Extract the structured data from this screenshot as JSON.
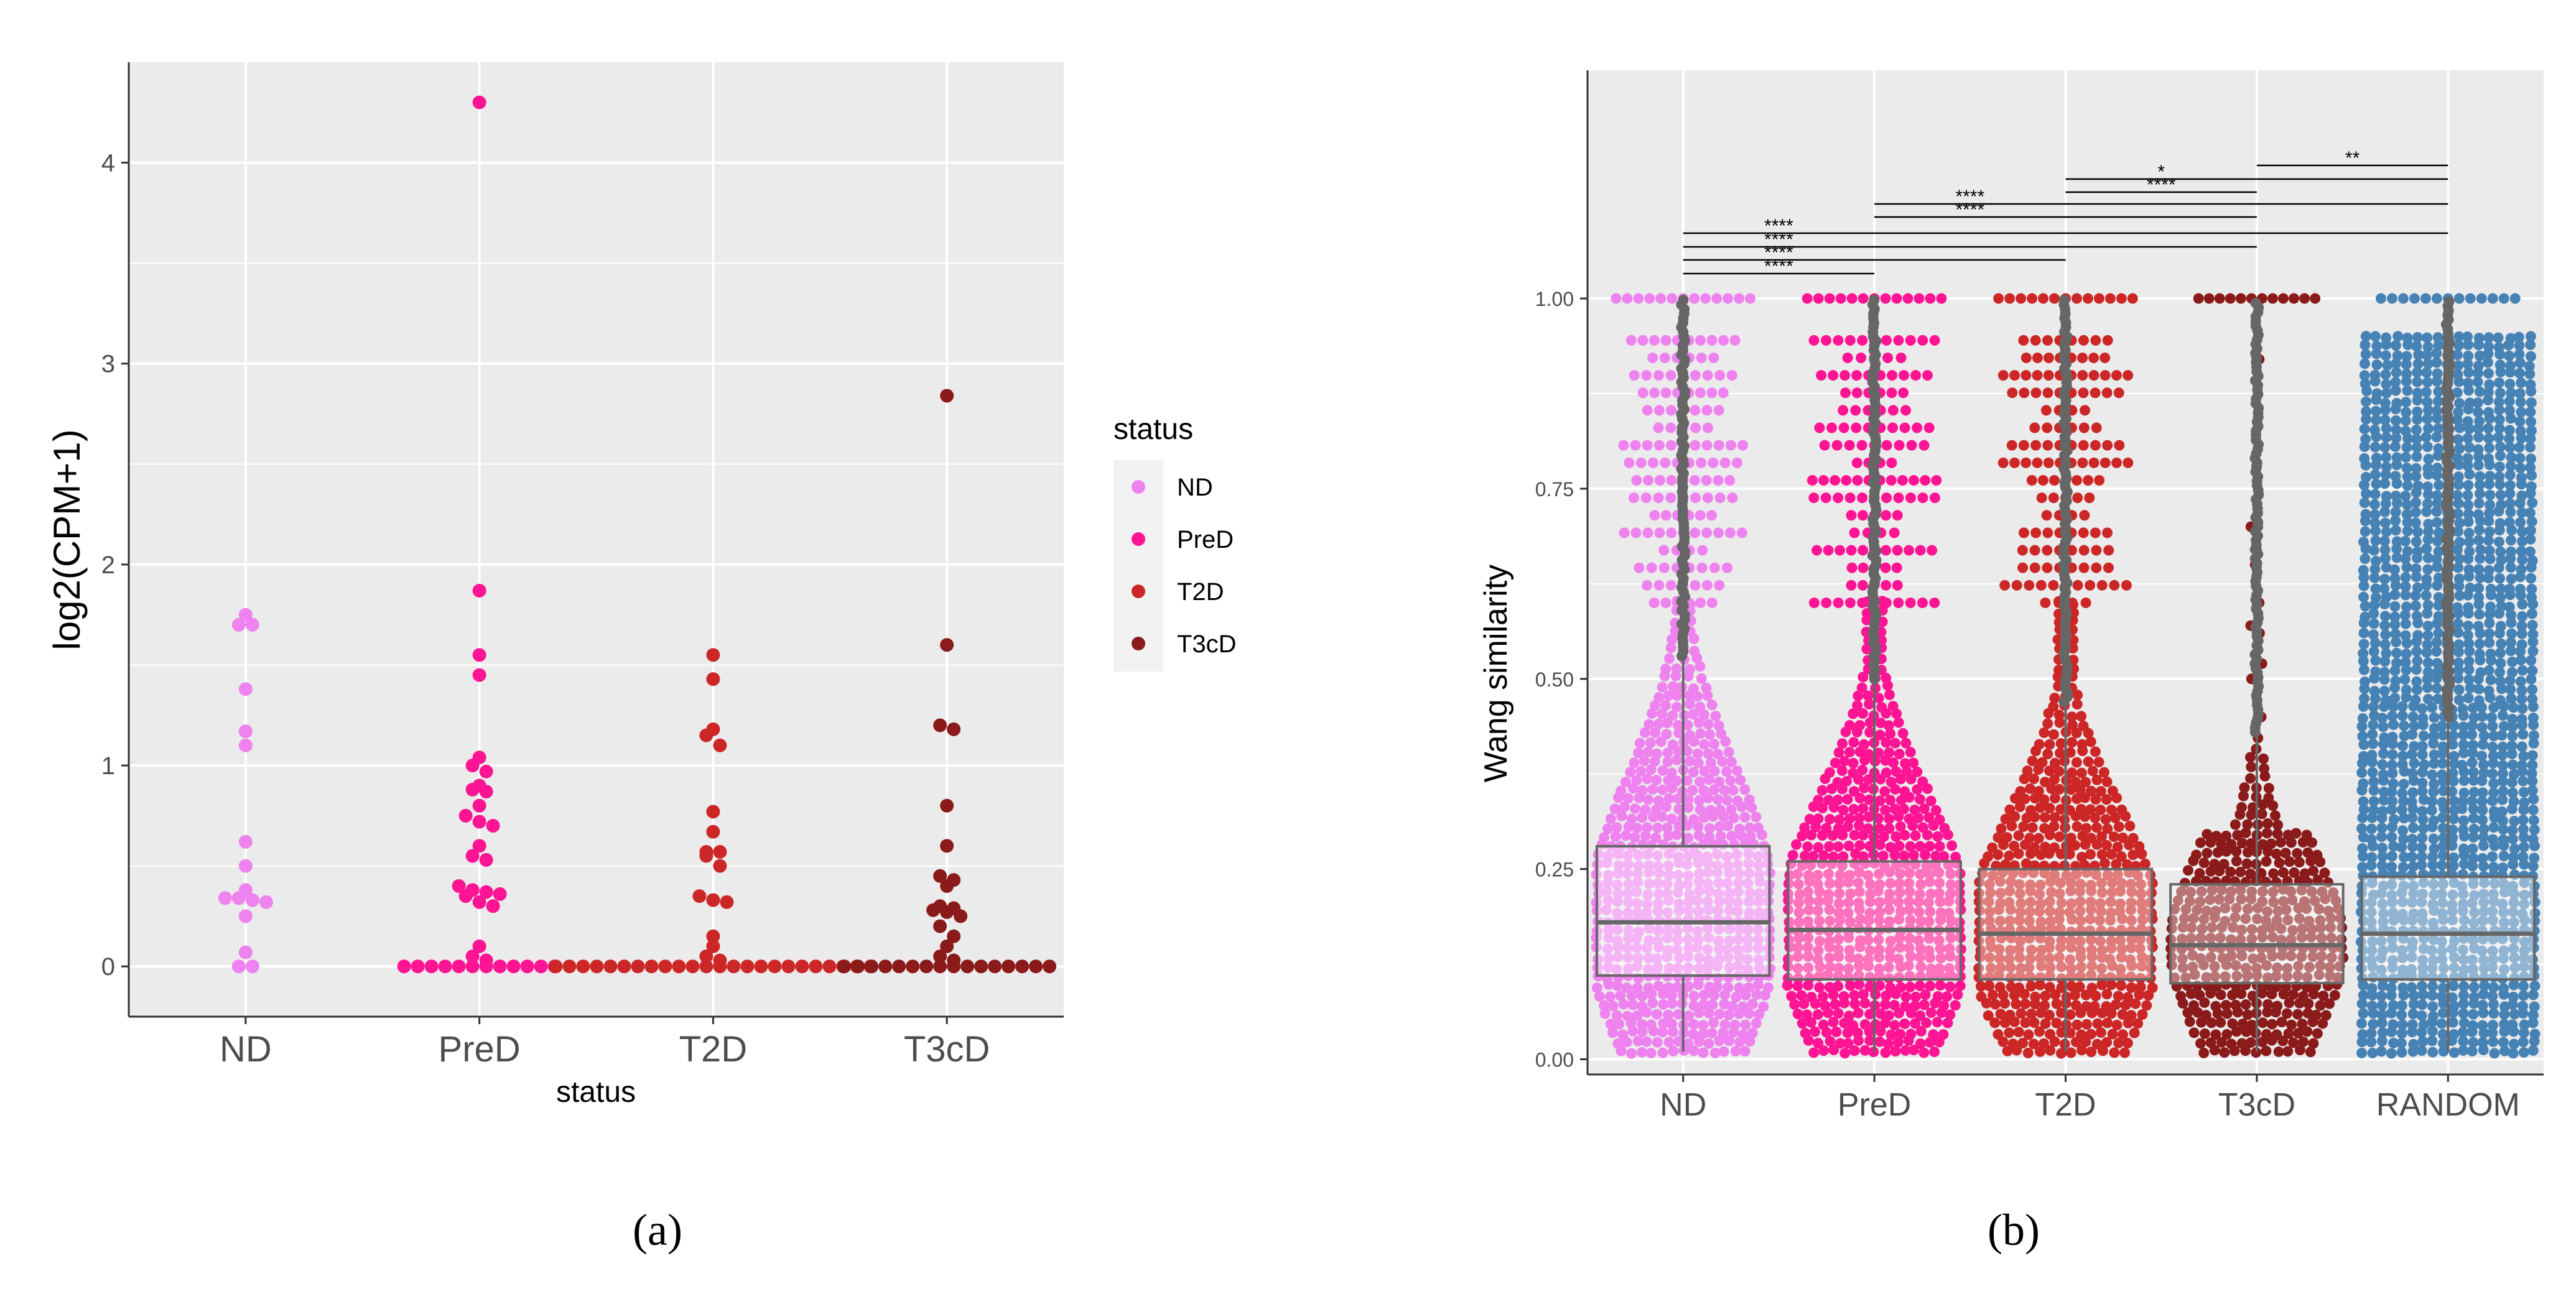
{
  "colors": {
    "ND": "#ee82ee",
    "PreD": "#ff1493",
    "T2D": "#cd2626",
    "T3cD": "#8b1a1a",
    "RANDOM": "#4682b4",
    "panel_bg": "#ebebeb",
    "grid": "#ffffff",
    "box_line": "#666666"
  },
  "chart_data": [
    {
      "panel": "a",
      "type": "scatter",
      "caption": "(a)",
      "title": "",
      "xlabel": "status",
      "ylabel": "log2(CPM+1)",
      "categories": [
        "ND",
        "PreD",
        "T2D",
        "T3cD"
      ],
      "ylim": [
        -0.25,
        4.5
      ],
      "yticks": [
        "0",
        "1",
        "2",
        "3",
        "4"
      ],
      "legend": {
        "title": "status",
        "position": "right",
        "entries": [
          "ND",
          "PreD",
          "T2D",
          "T3cD"
        ]
      },
      "series": [
        {
          "name": "ND",
          "values": [
            1.75,
            1.7,
            1.7,
            1.38,
            1.17,
            1.1,
            0.62,
            0.5,
            0.38,
            0.34,
            0.34,
            0.33,
            0.32,
            0.25,
            0.07,
            0,
            0
          ]
        },
        {
          "name": "PreD",
          "values": [
            4.3,
            1.87,
            1.55,
            1.45,
            1.04,
            1.0,
            0.97,
            0.9,
            0.88,
            0.87,
            0.8,
            0.75,
            0.72,
            0.7,
            0.6,
            0.55,
            0.53,
            0.4,
            0.38,
            0.37,
            0.36,
            0.35,
            0.32,
            0.3,
            0.1,
            0.05,
            0.03,
            0,
            0,
            0,
            0,
            0,
            0,
            0,
            0,
            0,
            0,
            0,
            0
          ]
        },
        {
          "name": "T2D",
          "values": [
            1.55,
            1.43,
            1.18,
            1.15,
            1.1,
            0.77,
            0.67,
            0.57,
            0.57,
            0.55,
            0.5,
            0.35,
            0.33,
            0.32,
            0.15,
            0.1,
            0.05,
            0.03,
            0,
            0,
            0,
            0,
            0,
            0,
            0,
            0,
            0,
            0,
            0,
            0,
            0,
            0,
            0,
            0,
            0,
            0,
            0,
            0,
            0,
            0,
            0,
            0
          ]
        },
        {
          "name": "T3cD",
          "values": [
            2.84,
            1.6,
            1.2,
            1.18,
            0.8,
            0.6,
            0.45,
            0.43,
            0.4,
            0.3,
            0.29,
            0.28,
            0.27,
            0.25,
            0.2,
            0.15,
            0.1,
            0.05,
            0.03,
            0,
            0,
            0,
            0,
            0,
            0,
            0,
            0,
            0,
            0,
            0,
            0,
            0,
            0,
            0,
            0
          ]
        }
      ]
    },
    {
      "panel": "b",
      "type": "box",
      "caption": "(b)",
      "title": "",
      "xlabel": "",
      "ylabel": "Wang similarity",
      "categories": [
        "ND",
        "PreD",
        "T2D",
        "T3cD",
        "RANDOM"
      ],
      "ylim": [
        -0.02,
        1.3
      ],
      "yticks": [
        "0.00",
        "0.25",
        "0.50",
        "0.75",
        "1.00"
      ],
      "boxes": [
        {
          "name": "ND",
          "q1": 0.11,
          "median": 0.18,
          "q3": 0.28,
          "whisker_low": 0.01,
          "whisker_high": 0.53,
          "max": 1.0
        },
        {
          "name": "PreD",
          "q1": 0.105,
          "median": 0.17,
          "q3": 0.26,
          "whisker_low": 0.01,
          "whisker_high": 0.5,
          "max": 1.0
        },
        {
          "name": "T2D",
          "q1": 0.105,
          "median": 0.165,
          "q3": 0.25,
          "whisker_low": 0.01,
          "whisker_high": 0.47,
          "max": 1.0
        },
        {
          "name": "T3cD",
          "q1": 0.1,
          "median": 0.15,
          "q3": 0.23,
          "whisker_low": 0.01,
          "whisker_high": 0.43,
          "max": 1.0
        },
        {
          "name": "RANDOM",
          "q1": 0.105,
          "median": 0.165,
          "q3": 0.24,
          "whisker_low": 0.01,
          "whisker_high": 0.45,
          "max": 1.0
        }
      ],
      "comparisons": [
        {
          "from": "ND",
          "to": "PreD",
          "label": "****"
        },
        {
          "from": "ND",
          "to": "T2D",
          "label": "****"
        },
        {
          "from": "ND",
          "to": "T3cD",
          "label": "****"
        },
        {
          "from": "ND",
          "to": "RANDOM",
          "label": "****"
        },
        {
          "from": "PreD",
          "to": "T3cD",
          "label": "****"
        },
        {
          "from": "PreD",
          "to": "RANDOM",
          "label": "****"
        },
        {
          "from": "T2D",
          "to": "T3cD",
          "label": "****"
        },
        {
          "from": "T2D",
          "to": "RANDOM",
          "label": "*"
        },
        {
          "from": "T3cD",
          "to": "RANDOM",
          "label": "**"
        }
      ]
    }
  ]
}
